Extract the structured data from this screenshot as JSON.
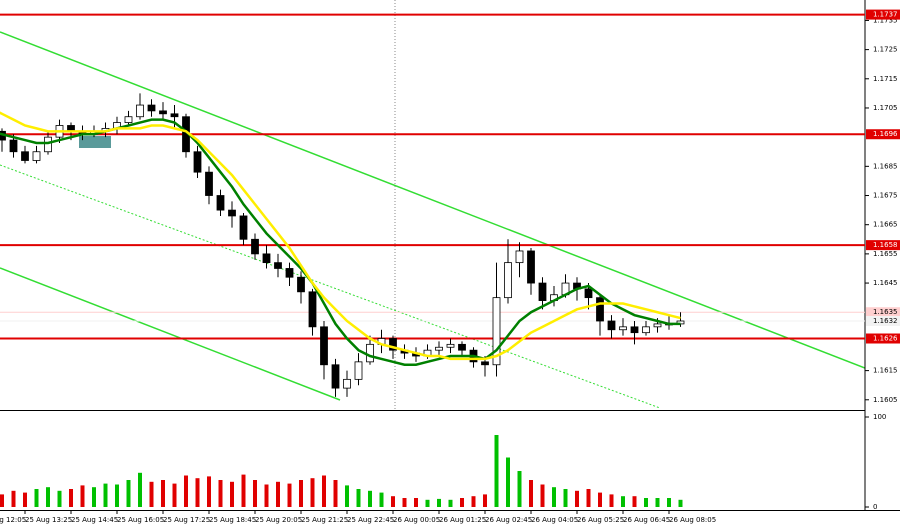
{
  "chart_data": {
    "type": "candlestick",
    "categories": [
      "25 Aug 12:05",
      null,
      null,
      null,
      "25 Aug 13:25",
      null,
      null,
      null,
      "25 Aug 14:45",
      null,
      null,
      null,
      "25 Aug 16:05",
      null,
      null,
      null,
      "25 Aug 17:25",
      null,
      null,
      null,
      "25 Aug 18:45",
      null,
      null,
      null,
      "25 Aug 20:05",
      null,
      null,
      null,
      "25 Aug 21:25",
      null,
      null,
      null,
      "25 Aug 22:45",
      null,
      null,
      null,
      "26 Aug 00:05",
      null,
      null,
      null,
      "26 Aug 01:25",
      null,
      null,
      null,
      "26 Aug 02:45",
      null,
      null,
      null,
      "26 Aug 04:05",
      null,
      null,
      null,
      "26 Aug 05:25",
      null,
      null,
      null,
      "26 Aug 06:45",
      null,
      null,
      null,
      "26 Aug 08:05",
      null
    ],
    "ohlc": [
      [
        1.1701,
        1.1705,
        1.1697,
        1.1699
      ],
      [
        1.1699,
        1.17,
        1.1694,
        1.1697
      ],
      [
        1.1697,
        1.1698,
        1.169,
        1.1694
      ],
      [
        1.1694,
        1.1696,
        1.1688,
        1.169
      ],
      [
        1.169,
        1.1692,
        1.1686,
        1.1687
      ],
      [
        1.1687,
        1.1692,
        1.1686,
        1.169
      ],
      [
        1.169,
        1.1697,
        1.1689,
        1.1695
      ],
      [
        1.1695,
        1.1701,
        1.1693,
        1.1699
      ],
      [
        1.1699,
        1.17,
        1.1694,
        1.1697
      ],
      [
        1.1697,
        1.1699,
        1.1694,
        1.1696
      ],
      [
        1.1696,
        1.1699,
        1.1695,
        1.1697
      ],
      [
        1.1697,
        1.17,
        1.1695,
        1.1698
      ],
      [
        1.1698,
        1.1702,
        1.1696,
        1.17
      ],
      [
        1.17,
        1.1704,
        1.1699,
        1.1702
      ],
      [
        1.1702,
        1.171,
        1.1701,
        1.1706
      ],
      [
        1.1706,
        1.1708,
        1.1702,
        1.1704
      ],
      [
        1.1704,
        1.1707,
        1.1701,
        1.1703
      ],
      [
        1.1703,
        1.1706,
        1.1698,
        1.1702
      ],
      [
        1.1702,
        1.1703,
        1.1688,
        1.169
      ],
      [
        1.169,
        1.1692,
        1.1681,
        1.1683
      ],
      [
        1.1683,
        1.1685,
        1.1672,
        1.1675
      ],
      [
        1.1675,
        1.1677,
        1.1668,
        1.167
      ],
      [
        1.167,
        1.1673,
        1.1664,
        1.1668
      ],
      [
        1.1668,
        1.1669,
        1.1658,
        1.166
      ],
      [
        1.166,
        1.1662,
        1.1653,
        1.1655
      ],
      [
        1.1655,
        1.1658,
        1.165,
        1.1652
      ],
      [
        1.1652,
        1.1655,
        1.1647,
        1.165
      ],
      [
        1.165,
        1.1652,
        1.1644,
        1.1647
      ],
      [
        1.1647,
        1.1649,
        1.1638,
        1.1642
      ],
      [
        1.1642,
        1.1643,
        1.1627,
        1.163
      ],
      [
        1.163,
        1.1632,
        1.1612,
        1.1617
      ],
      [
        1.1617,
        1.1619,
        1.1606,
        1.1609
      ],
      [
        1.1609,
        1.1615,
        1.1606,
        1.1612
      ],
      [
        1.1612,
        1.1621,
        1.161,
        1.1618
      ],
      [
        1.1618,
        1.1627,
        1.1617,
        1.1624
      ],
      [
        1.1624,
        1.1629,
        1.1621,
        1.1626
      ],
      [
        1.1626,
        1.1627,
        1.1619,
        1.1622
      ],
      [
        1.1622,
        1.1624,
        1.1619,
        1.1621
      ],
      [
        1.1621,
        1.1623,
        1.1618,
        1.162
      ],
      [
        1.162,
        1.1624,
        1.1619,
        1.1622
      ],
      [
        1.1622,
        1.1625,
        1.162,
        1.1623
      ],
      [
        1.1623,
        1.1626,
        1.1621,
        1.1624
      ],
      [
        1.1624,
        1.1625,
        1.162,
        1.1622
      ],
      [
        1.1622,
        1.1623,
        1.1616,
        1.1618
      ],
      [
        1.1618,
        1.162,
        1.1613,
        1.1617
      ],
      [
        1.1617,
        1.1652,
        1.1613,
        1.164
      ],
      [
        1.164,
        1.166,
        1.1638,
        1.1652
      ],
      [
        1.1652,
        1.1659,
        1.1647,
        1.1656
      ],
      [
        1.1656,
        1.1657,
        1.1641,
        1.1645
      ],
      [
        1.1645,
        1.1647,
        1.1636,
        1.1639
      ],
      [
        1.1639,
        1.1644,
        1.1637,
        1.1641
      ],
      [
        1.1641,
        1.1648,
        1.164,
        1.1645
      ],
      [
        1.1645,
        1.1647,
        1.1639,
        1.1643
      ],
      [
        1.1643,
        1.1645,
        1.1636,
        1.164
      ],
      [
        1.164,
        1.1641,
        1.1627,
        1.1632
      ],
      [
        1.1632,
        1.1634,
        1.1626,
        1.1629
      ],
      [
        1.1629,
        1.1633,
        1.1627,
        1.163
      ],
      [
        1.163,
        1.1632,
        1.1624,
        1.1628
      ],
      [
        1.1628,
        1.1632,
        1.1627,
        1.163
      ],
      [
        1.163,
        1.1633,
        1.1628,
        1.1631
      ],
      [
        1.1631,
        1.1634,
        1.1629,
        1.1631
      ],
      [
        1.1631,
        1.1635,
        1.163,
        1.1632
      ]
    ],
    "up_color": "#ffffff",
    "down_color": "#000000",
    "series": [
      {
        "color": "#008000",
        "values": [
          1.1697,
          1.1697,
          1.1696,
          1.1695,
          1.1694,
          1.1693,
          1.1693,
          1.1694,
          1.1695,
          1.1696,
          1.1696,
          1.1697,
          1.1698,
          1.1699,
          1.17,
          1.1701,
          1.1701,
          1.17,
          1.1697,
          1.1693,
          1.1688,
          1.1683,
          1.1678,
          1.1672,
          1.1667,
          1.1662,
          1.1658,
          1.1654,
          1.165,
          1.1645,
          1.1638,
          1.1631,
          1.1626,
          1.1622,
          1.162,
          1.1619,
          1.1618,
          1.1617,
          1.1617,
          1.1618,
          1.1619,
          1.162,
          1.162,
          1.162,
          1.1619,
          1.1622,
          1.1627,
          1.1632,
          1.1635,
          1.1637,
          1.1639,
          1.1641,
          1.1643,
          1.1644,
          1.1641,
          1.1638,
          1.1636,
          1.1634,
          1.1633,
          1.1632,
          1.1631,
          1.1631
        ]
      },
      {
        "color": "#ffee00",
        "values": [
          1.1707,
          1.1705,
          1.1703,
          1.1701,
          1.1699,
          1.1698,
          1.1697,
          1.1697,
          1.1697,
          1.1697,
          1.1697,
          1.1697,
          1.1698,
          1.1698,
          1.1698,
          1.1699,
          1.1699,
          1.1698,
          1.1697,
          1.1694,
          1.169,
          1.1686,
          1.1682,
          1.1677,
          1.1672,
          1.1667,
          1.1662,
          1.1657,
          1.1651,
          1.1645,
          1.164,
          1.1636,
          1.1632,
          1.1629,
          1.1626,
          1.1624,
          1.1623,
          1.1622,
          1.1621,
          1.162,
          1.162,
          1.1619,
          1.1619,
          1.1619,
          1.1619,
          1.162,
          1.1622,
          1.1625,
          1.1628,
          1.163,
          1.1632,
          1.1634,
          1.1636,
          1.1637,
          1.1638,
          1.1638,
          1.1638,
          1.1637,
          1.1636,
          1.1635,
          1.1634,
          1.1633
        ]
      }
    ],
    "ylim": [
      1.16015,
      1.1742
    ],
    "yticks": [
      1.1735,
      1.1725,
      1.1715,
      1.1705,
      1.1685,
      1.1675,
      1.1665,
      1.1655,
      1.1645,
      1.1615,
      1.1605
    ],
    "levels": [
      {
        "value": 1.1737,
        "color": "#e00000"
      },
      {
        "value": 1.1696,
        "color": "#e00000"
      },
      {
        "value": 1.1658,
        "color": "#e00000"
      },
      {
        "value": 1.1626,
        "color": "#e00000"
      }
    ],
    "markers": [
      {
        "value": 1.1635,
        "color": "#ffcfcf"
      },
      {
        "value": 1.1632,
        "color": "#f2f2f2"
      }
    ],
    "volume": {
      "up_color": "#00c000",
      "down_color": "#e00000",
      "values": [
        12,
        15,
        14,
        18,
        16,
        20,
        22,
        18,
        20,
        24,
        22,
        26,
        25,
        30,
        38,
        28,
        30,
        26,
        35,
        32,
        34,
        30,
        28,
        36,
        30,
        25,
        28,
        26,
        30,
        32,
        35,
        30,
        24,
        20,
        18,
        16,
        12,
        10,
        10,
        8,
        9,
        8,
        10,
        12,
        14,
        80,
        55,
        40,
        30,
        25,
        22,
        20,
        18,
        20,
        16,
        14,
        12,
        12,
        10,
        10,
        10,
        8
      ],
      "ylim": [
        0,
        100
      ],
      "yticks": [
        0,
        100
      ]
    }
  }
}
